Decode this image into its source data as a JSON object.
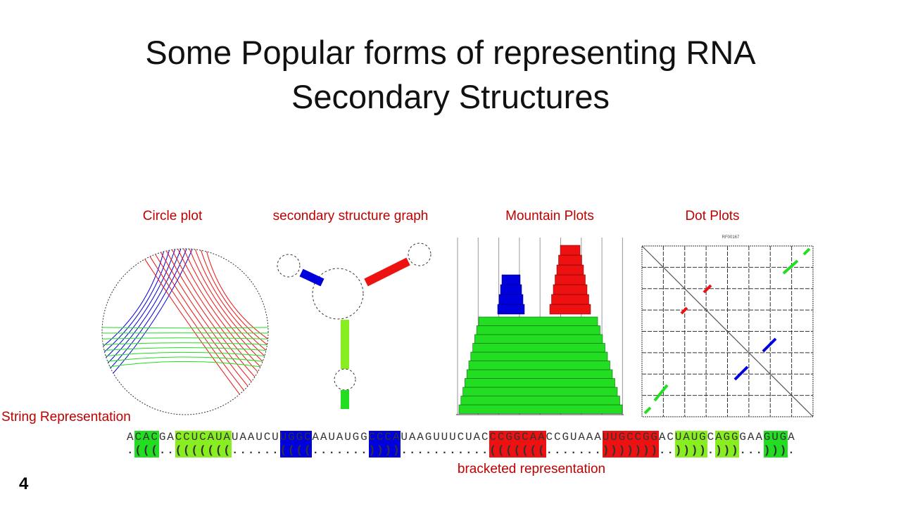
{
  "slide": {
    "title_line1": "Some Popular forms of representing RNA",
    "title_line2": "Secondary Structures",
    "page_number": "4"
  },
  "labels": {
    "circle_plot": "Circle plot",
    "secondary_structure_graph": "secondary structure graph",
    "mountain_plots": "Mountain Plots",
    "dot_plots": "Dot Plots",
    "string_representation": "String Representation",
    "bracketed_representation": "bracketed representation",
    "dot_plot_title": "RF00167"
  },
  "colors": {
    "label": "#c00000",
    "helix_green": "#22dd22",
    "helix_lightgreen": "#88ee22",
    "helix_blue": "#0000dd",
    "helix_red": "#ee1111"
  },
  "string": [
    {
      "seq": "A",
      "br": ".",
      "color": ""
    },
    {
      "seq": "CAC",
      "br": "(((",
      "color": "#22dd22"
    },
    {
      "seq": "GA",
      "br": "..",
      "color": ""
    },
    {
      "seq": "CCUCAUA",
      "br": "(((((((",
      "color": "#88ee22"
    },
    {
      "seq": "UAAUCU",
      "br": "......",
      "color": ""
    },
    {
      "seq": "UGGC",
      "br": "((((",
      "color": "#0000dd"
    },
    {
      "seq": "AAUAUGG",
      "br": ".......",
      "color": ""
    },
    {
      "seq": "CCCA",
      "br": "))))",
      "color": "#0000dd"
    },
    {
      "seq": "UAAGUUUCUAC",
      "br": "...........",
      "color": ""
    },
    {
      "seq": "CCGGCAA",
      "br": "(((((((",
      "color": "#ee1111"
    },
    {
      "seq": "CCGUAAA",
      "br": ".......",
      "color": ""
    },
    {
      "seq": "UUGCCGG",
      "br": ")))))))",
      "color": "#ee1111"
    },
    {
      "seq": "AC",
      "br": "..",
      "color": ""
    },
    {
      "seq": "UAUG",
      "br": "))))",
      "color": "#88ee22"
    },
    {
      "seq": "C",
      "br": ".",
      "color": ""
    },
    {
      "seq": "AGG",
      "br": ")))",
      "color": "#88ee22"
    },
    {
      "seq": "GAA",
      "br": "...",
      "color": ""
    },
    {
      "seq": "GUG",
      "br": ")))",
      "color": "#22dd22"
    },
    {
      "seq": "A",
      "br": ".",
      "color": ""
    }
  ]
}
